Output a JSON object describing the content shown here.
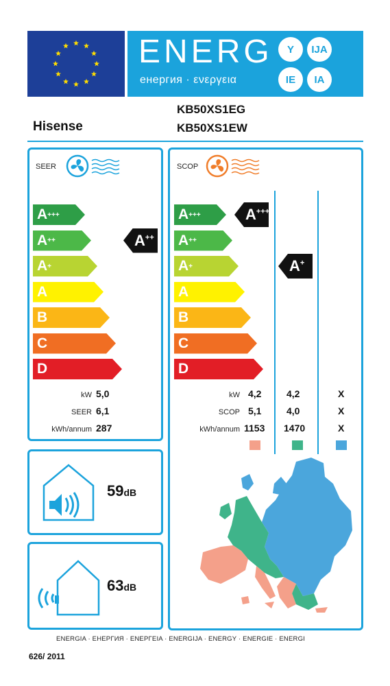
{
  "header": {
    "energy_word": "ENERG",
    "energy_sub": "енергия · ενεργεια",
    "lang_badges": [
      "Y",
      "IJA",
      "IE",
      "IA"
    ],
    "eu_flag_icon": "eu-stars-icon",
    "brand": "Hisense",
    "models": [
      "KB50XS1EG",
      "KB50XS1EW"
    ]
  },
  "seer": {
    "label": "SEER",
    "icon": "fan-cool-icon",
    "classes": [
      "A+++",
      "A++",
      "A+",
      "A",
      "B",
      "C",
      "D"
    ],
    "class_colors": [
      "#2e9e47",
      "#4cb848",
      "#b8d432",
      "#fff200",
      "#fbb616",
      "#f06e23",
      "#e21e26"
    ],
    "rating": "A++",
    "rating_index": 1,
    "rows": [
      {
        "label": "kW",
        "value": "5,0"
      },
      {
        "label": "SEER",
        "value": "6,1"
      },
      {
        "label": "kWh/annum",
        "value": "287"
      }
    ]
  },
  "scop": {
    "label": "SCOP",
    "icon": "fan-heat-icon",
    "classes": [
      "A+++",
      "A++",
      "A+",
      "A",
      "B",
      "C",
      "D"
    ],
    "indicators": [
      {
        "rating": "A+++",
        "rating_index": 0
      },
      {
        "rating": "A+",
        "rating_index": 2
      }
    ],
    "row_labels": [
      "kW",
      "SCOP",
      "kWh/annum"
    ],
    "columns": [
      {
        "values": [
          "4,2",
          "5,1",
          "1153"
        ],
        "color": "#f4a08a"
      },
      {
        "values": [
          "4,2",
          "4,0",
          "1470"
        ],
        "color": "#3fb48a"
      },
      {
        "values": [
          "X",
          "X",
          "X"
        ],
        "color": "#4ba6dc"
      }
    ],
    "map_icon": "europe-climate-map-icon"
  },
  "noise": [
    {
      "value": "59",
      "unit": "dB",
      "icon": "indoor-sound-house-icon"
    },
    {
      "value": "63",
      "unit": "dB",
      "icon": "outdoor-sound-house-icon"
    }
  ],
  "footer": {
    "energy_languages": "ENERGIA · ЕНЕРГИЯ · ΕΝΕΡΓΕΙΑ · ENERGIJA · ENERGY · ENERGIE · ENERGI",
    "regulation": "626/ 2011"
  }
}
